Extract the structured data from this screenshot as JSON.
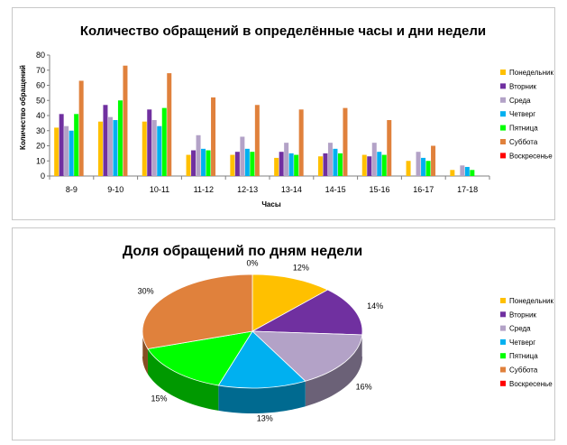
{
  "chart_data": [
    {
      "type": "bar",
      "title": "Количество обращений в определённые часы и дни недели",
      "xlabel": "Часы",
      "ylabel": "Количество обращений",
      "ylim": [
        0,
        80
      ],
      "yticks": [
        "0",
        "10",
        "20",
        "30",
        "40",
        "50",
        "60",
        "70",
        "80"
      ],
      "grid": false,
      "legend_position": "right",
      "categories": [
        "8-9",
        "9-10",
        "10-11",
        "11-12",
        "12-13",
        "13-14",
        "14-15",
        "15-16",
        "16-17",
        "17-18"
      ],
      "series": [
        {
          "name": "Понедельник",
          "color": "#FFC000",
          "values": [
            32,
            36,
            36,
            14,
            14,
            12,
            13,
            14,
            10,
            4
          ]
        },
        {
          "name": "Вторник",
          "color": "#7030A0",
          "values": [
            41,
            47,
            44,
            17,
            16,
            16,
            15,
            13,
            0,
            0
          ]
        },
        {
          "name": "Среда",
          "color": "#B3A2C7",
          "values": [
            33,
            39,
            37,
            27,
            26,
            22,
            22,
            22,
            16,
            7
          ]
        },
        {
          "name": "Четверг",
          "color": "#00B0F0",
          "values": [
            30,
            37,
            33,
            18,
            18,
            15,
            18,
            16,
            12,
            6
          ]
        },
        {
          "name": "Пятница",
          "color": "#00FF00",
          "values": [
            41,
            50,
            45,
            17,
            16,
            14,
            15,
            14,
            10,
            4
          ]
        },
        {
          "name": "Суббота",
          "color": "#E0813C",
          "values": [
            63,
            73,
            68,
            52,
            47,
            44,
            45,
            37,
            20,
            0
          ]
        },
        {
          "name": "Воскресенье",
          "color": "#FF0000",
          "values": [
            0,
            0,
            0,
            0,
            0,
            0,
            0,
            0,
            0,
            0
          ]
        }
      ]
    },
    {
      "type": "pie",
      "title": "Доля обращений по дням недели",
      "legend_position": "right",
      "slices": [
        {
          "name": "Понедельник",
          "color": "#FFC000",
          "value": 12,
          "label": "12%"
        },
        {
          "name": "Вторник",
          "color": "#7030A0",
          "value": 14,
          "label": "14%"
        },
        {
          "name": "Среда",
          "color": "#B3A2C7",
          "value": 16,
          "label": "16%"
        },
        {
          "name": "Четверг",
          "color": "#00B0F0",
          "value": 13,
          "label": "13%"
        },
        {
          "name": "Пятница",
          "color": "#00FF00",
          "value": 15,
          "label": "15%"
        },
        {
          "name": "Суббота",
          "color": "#E0813C",
          "value": 30,
          "label": "30%"
        },
        {
          "name": "Воскресенье",
          "color": "#FF0000",
          "value": 0,
          "label": "0%"
        }
      ]
    }
  ]
}
